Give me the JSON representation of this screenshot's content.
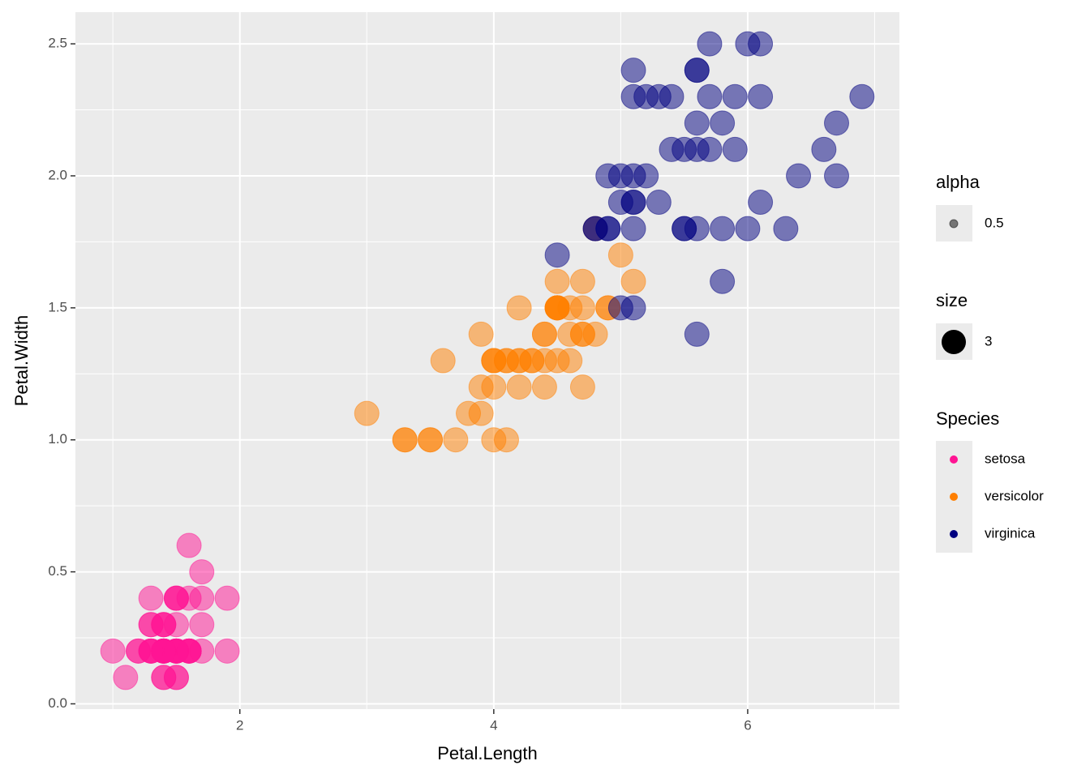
{
  "chart_data": {
    "type": "scatter",
    "x_label": "Petal.Length",
    "y_label": "Petal.Width",
    "xlim": [
      0.705,
      7.195
    ],
    "ylim": [
      -0.02,
      2.62
    ],
    "xticks": [
      2,
      4,
      6
    ],
    "yticks": [
      {
        "value": 0,
        "label": "0.0"
      },
      {
        "value": 0.5,
        "label": "0.5"
      },
      {
        "value": 1,
        "label": "1.0"
      },
      {
        "value": 1.5,
        "label": "1.5"
      },
      {
        "value": 2,
        "label": "2.0"
      },
      {
        "value": 2.5,
        "label": "2.5"
      }
    ],
    "grid": true,
    "alpha": 0.5,
    "size": 3,
    "legend_titles": {
      "alpha": "alpha",
      "size": "size",
      "species": "Species"
    },
    "series": [
      {
        "name": "setosa",
        "color": "#ff1493",
        "x": [
          1.4,
          1.4,
          1.3,
          1.5,
          1.4,
          1.7,
          1.4,
          1.5,
          1.4,
          1.5,
          1.5,
          1.6,
          1.4,
          1.1,
          1.2,
          1.5,
          1.3,
          1.4,
          1.7,
          1.5,
          1.7,
          1.5,
          1.0,
          1.7,
          1.9,
          1.6,
          1.6,
          1.5,
          1.4,
          1.6,
          1.6,
          1.5,
          1.5,
          1.4,
          1.5,
          1.2,
          1.3,
          1.4,
          1.3,
          1.5,
          1.3,
          1.3,
          1.3,
          1.6,
          1.9,
          1.4,
          1.6,
          1.4,
          1.5,
          1.4
        ],
        "values": [
          0.2,
          0.2,
          0.2,
          0.2,
          0.2,
          0.4,
          0.3,
          0.2,
          0.2,
          0.1,
          0.2,
          0.2,
          0.1,
          0.1,
          0.2,
          0.4,
          0.4,
          0.3,
          0.3,
          0.3,
          0.2,
          0.4,
          0.2,
          0.5,
          0.2,
          0.2,
          0.4,
          0.2,
          0.2,
          0.2,
          0.2,
          0.4,
          0.1,
          0.2,
          0.2,
          0.2,
          0.2,
          0.1,
          0.2,
          0.2,
          0.3,
          0.3,
          0.2,
          0.6,
          0.4,
          0.3,
          0.2,
          0.2,
          0.2,
          0.2
        ]
      },
      {
        "name": "versicolor",
        "color": "#ff7f00",
        "x": [
          4.7,
          4.5,
          4.9,
          4.0,
          4.6,
          4.5,
          4.7,
          3.3,
          4.6,
          3.9,
          3.5,
          4.2,
          4.0,
          4.7,
          3.6,
          4.4,
          4.5,
          4.1,
          4.5,
          3.9,
          4.8,
          4.0,
          4.9,
          4.7,
          4.3,
          4.4,
          4.8,
          5.0,
          4.5,
          3.5,
          3.8,
          3.7,
          3.9,
          5.1,
          4.5,
          4.5,
          4.7,
          4.4,
          4.1,
          4.0,
          4.4,
          4.6,
          4.0,
          3.3,
          4.2,
          4.2,
          4.2,
          4.3,
          3.0,
          4.1
        ],
        "values": [
          1.4,
          1.5,
          1.5,
          1.3,
          1.5,
          1.3,
          1.6,
          1.0,
          1.3,
          1.4,
          1.0,
          1.5,
          1.0,
          1.4,
          1.3,
          1.4,
          1.5,
          1.0,
          1.5,
          1.1,
          1.8,
          1.3,
          1.5,
          1.2,
          1.3,
          1.4,
          1.4,
          1.7,
          1.5,
          1.0,
          1.1,
          1.0,
          1.2,
          1.6,
          1.5,
          1.6,
          1.5,
          1.3,
          1.3,
          1.3,
          1.2,
          1.4,
          1.2,
          1.0,
          1.3,
          1.2,
          1.3,
          1.3,
          1.1,
          1.3
        ]
      },
      {
        "name": "virginica",
        "color": "#000080",
        "x": [
          6.0,
          5.1,
          5.9,
          5.6,
          5.8,
          6.6,
          4.5,
          6.3,
          5.8,
          6.1,
          5.1,
          5.3,
          5.5,
          5.0,
          5.1,
          5.3,
          5.5,
          6.7,
          6.9,
          5.0,
          5.7,
          4.9,
          6.7,
          4.9,
          5.7,
          6.0,
          4.8,
          4.9,
          5.6,
          5.8,
          6.1,
          6.4,
          5.6,
          5.1,
          5.6,
          6.1,
          5.6,
          5.5,
          4.8,
          5.4,
          5.6,
          5.1,
          5.1,
          5.9,
          5.7,
          5.2,
          5.0,
          5.2,
          5.4,
          5.1
        ],
        "values": [
          2.5,
          1.9,
          2.1,
          1.8,
          2.2,
          2.1,
          1.7,
          1.8,
          1.8,
          2.5,
          2.0,
          1.9,
          2.1,
          2.0,
          2.4,
          2.3,
          1.8,
          2.2,
          2.3,
          1.5,
          2.3,
          2.0,
          2.0,
          1.8,
          2.1,
          1.8,
          1.8,
          1.8,
          2.1,
          1.6,
          1.9,
          2.0,
          2.2,
          1.5,
          1.4,
          2.3,
          2.4,
          1.8,
          1.8,
          2.1,
          2.4,
          2.3,
          1.9,
          2.3,
          2.5,
          2.3,
          1.9,
          2.0,
          2.3,
          1.8
        ]
      }
    ]
  }
}
